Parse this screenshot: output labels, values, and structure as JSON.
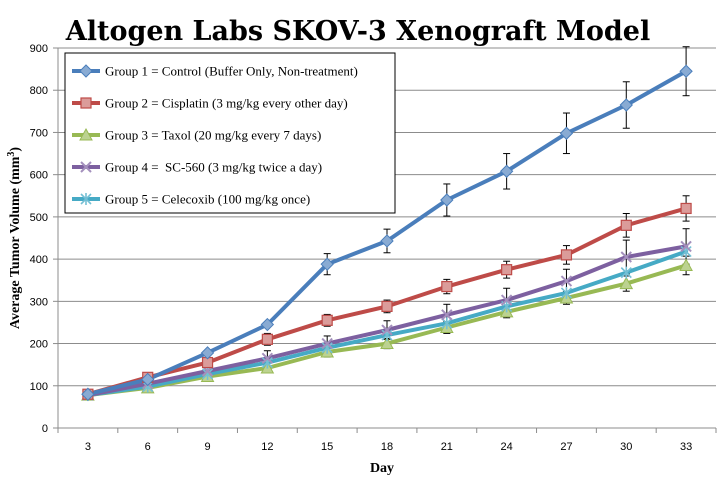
{
  "chart_data": {
    "type": "line",
    "title": "Altogen Labs SKOV-3 Xenograft Model",
    "xlabel": "Day",
    "ylabel": "Average Tumor Volume (mm",
    "ylabel_sup": "3",
    "ylabel_close": ")",
    "x": [
      3,
      6,
      9,
      12,
      15,
      18,
      21,
      24,
      27,
      30,
      33
    ],
    "xticks": [
      "3",
      "6",
      "9",
      "12",
      "15",
      "18",
      "21",
      "24",
      "27",
      "30",
      "33"
    ],
    "ylim": [
      0,
      900
    ],
    "yticks": [
      "0",
      "100",
      "200",
      "300",
      "400",
      "500",
      "600",
      "700",
      "800",
      "900"
    ],
    "grid": true,
    "legend_position": "top-left",
    "series": [
      {
        "name": "Group 1 = Control (Buffer Only, Non-treatment)",
        "color": "#4a7ebb",
        "marker": "diamond",
        "values": [
          80,
          115,
          178,
          245,
          388,
          443,
          540,
          608,
          698,
          765,
          845
        ],
        "errors": [
          0,
          0,
          0,
          0,
          25,
          28,
          38,
          42,
          48,
          55,
          58
        ]
      },
      {
        "name": "Group 2 = Cisplatin (3 mg/kg every other day)",
        "color": "#be4b48",
        "marker": "square",
        "values": [
          80,
          120,
          155,
          210,
          255,
          288,
          335,
          375,
          410,
          480,
          520
        ],
        "errors": [
          0,
          0,
          0,
          14,
          14,
          15,
          17,
          20,
          22,
          28,
          30
        ]
      },
      {
        "name": "Group 3 = Taxol (20 mg/kg every 7 days)",
        "color": "#98b954",
        "marker": "triangle",
        "values": [
          78,
          95,
          122,
          142,
          180,
          200,
          238,
          275,
          308,
          342,
          385
        ],
        "errors": [
          0,
          0,
          0,
          0,
          12,
          12,
          14,
          14,
          15,
          18,
          22
        ]
      },
      {
        "name": "Group 4 =  SC-560 (3 mg/kg twice a day)",
        "color": "#7d60a0",
        "marker": "x",
        "values": [
          78,
          105,
          135,
          165,
          200,
          232,
          268,
          303,
          348,
          405,
          430
        ],
        "errors": [
          0,
          0,
          0,
          18,
          18,
          22,
          25,
          28,
          28,
          40,
          42
        ]
      },
      {
        "name": "Group 5 = Celecoxib (100 mg/kg once)",
        "color": "#46aac5",
        "marker": "star",
        "values": [
          78,
          98,
          128,
          155,
          190,
          220,
          248,
          288,
          320,
          368,
          418
        ],
        "errors": [
          0,
          0,
          0,
          0,
          0,
          0,
          0,
          0,
          0,
          0,
          0
        ]
      }
    ]
  }
}
